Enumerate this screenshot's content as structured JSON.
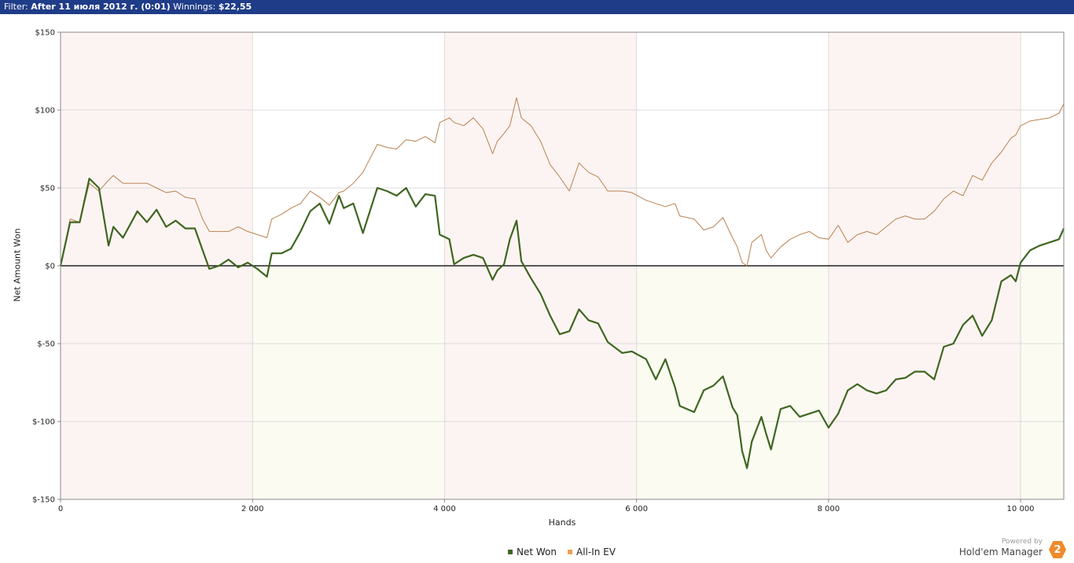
{
  "header": {
    "filter_key": "Filter:",
    "filter_value": "After 11 июля 2012 г. (0:01)",
    "winnings_key": "Winnings:",
    "winnings_value": "$22,55"
  },
  "brand": {
    "powered_by": "Powered by",
    "name": "Hold'em Manager",
    "badge": "2"
  },
  "colors": {
    "net_won": "#3f6621",
    "allin_ev": "#b8824f",
    "band_pink": "#fcf4f2",
    "band_cream": "#fbfbf2",
    "header_bg": "#1f3c88"
  },
  "chart_data": {
    "type": "line",
    "title": "",
    "xlabel": "Hands",
    "ylabel": "Net Amount Won",
    "xlim": [
      0,
      10450
    ],
    "ylim": [
      -150,
      150
    ],
    "x_ticks": [
      0,
      2000,
      4000,
      6000,
      8000,
      10000
    ],
    "x_tick_labels": [
      "0",
      "2 000",
      "4 000",
      "6 000",
      "8 000",
      "10 000"
    ],
    "y_ticks": [
      150,
      100,
      50,
      0,
      -50,
      -100,
      -150
    ],
    "y_tick_labels": [
      "$150",
      "$100",
      "$50",
      "$0",
      "$-50",
      "$-100",
      "$-150"
    ],
    "grid": true,
    "legend": "bottom-center",
    "series": [
      {
        "name": "Net Won",
        "color": "#3f6621",
        "points": [
          [
            0,
            0
          ],
          [
            100,
            28
          ],
          [
            200,
            28
          ],
          [
            300,
            56
          ],
          [
            400,
            50
          ],
          [
            500,
            13
          ],
          [
            550,
            25
          ],
          [
            650,
            18
          ],
          [
            800,
            35
          ],
          [
            900,
            28
          ],
          [
            1000,
            36
          ],
          [
            1100,
            25
          ],
          [
            1200,
            29
          ],
          [
            1300,
            24
          ],
          [
            1400,
            24
          ],
          [
            1480,
            10
          ],
          [
            1550,
            -2
          ],
          [
            1650,
            0
          ],
          [
            1750,
            4
          ],
          [
            1850,
            -1
          ],
          [
            1950,
            2
          ],
          [
            2050,
            -2
          ],
          [
            2150,
            -7
          ],
          [
            2200,
            8
          ],
          [
            2300,
            8
          ],
          [
            2400,
            11
          ],
          [
            2500,
            22
          ],
          [
            2600,
            35
          ],
          [
            2700,
            40
          ],
          [
            2800,
            27
          ],
          [
            2900,
            45
          ],
          [
            2950,
            37
          ],
          [
            3050,
            40
          ],
          [
            3150,
            21
          ],
          [
            3300,
            50
          ],
          [
            3400,
            48
          ],
          [
            3500,
            45
          ],
          [
            3600,
            50
          ],
          [
            3700,
            38
          ],
          [
            3800,
            46
          ],
          [
            3900,
            45
          ],
          [
            3950,
            20
          ],
          [
            4050,
            17
          ],
          [
            4100,
            1
          ],
          [
            4200,
            5
          ],
          [
            4300,
            7
          ],
          [
            4400,
            5
          ],
          [
            4500,
            -9
          ],
          [
            4550,
            -3
          ],
          [
            4620,
            1
          ],
          [
            4680,
            17
          ],
          [
            4750,
            29
          ],
          [
            4800,
            3
          ],
          [
            4900,
            -8
          ],
          [
            5000,
            -18
          ],
          [
            5100,
            -32
          ],
          [
            5200,
            -44
          ],
          [
            5300,
            -42
          ],
          [
            5400,
            -28
          ],
          [
            5500,
            -35
          ],
          [
            5600,
            -37
          ],
          [
            5700,
            -49
          ],
          [
            5850,
            -56
          ],
          [
            5950,
            -55
          ],
          [
            6100,
            -60
          ],
          [
            6200,
            -73
          ],
          [
            6300,
            -60
          ],
          [
            6400,
            -78
          ],
          [
            6450,
            -90
          ],
          [
            6600,
            -94
          ],
          [
            6700,
            -80
          ],
          [
            6800,
            -77
          ],
          [
            6900,
            -71
          ],
          [
            7000,
            -91
          ],
          [
            7050,
            -96
          ],
          [
            7100,
            -119
          ],
          [
            7150,
            -130
          ],
          [
            7200,
            -113
          ],
          [
            7300,
            -97
          ],
          [
            7350,
            -108
          ],
          [
            7400,
            -118
          ],
          [
            7500,
            -92
          ],
          [
            7600,
            -90
          ],
          [
            7700,
            -97
          ],
          [
            7800,
            -95
          ],
          [
            7900,
            -93
          ],
          [
            8000,
            -104
          ],
          [
            8100,
            -95
          ],
          [
            8200,
            -80
          ],
          [
            8300,
            -76
          ],
          [
            8400,
            -80
          ],
          [
            8500,
            -82
          ],
          [
            8600,
            -80
          ],
          [
            8700,
            -73
          ],
          [
            8800,
            -72
          ],
          [
            8900,
            -68
          ],
          [
            9000,
            -68
          ],
          [
            9100,
            -73
          ],
          [
            9200,
            -52
          ],
          [
            9300,
            -50
          ],
          [
            9400,
            -38
          ],
          [
            9500,
            -32
          ],
          [
            9600,
            -45
          ],
          [
            9700,
            -35
          ],
          [
            9800,
            -10
          ],
          [
            9900,
            -6
          ],
          [
            9950,
            -10
          ],
          [
            10000,
            2
          ],
          [
            10100,
            10
          ],
          [
            10200,
            13
          ],
          [
            10300,
            15
          ],
          [
            10400,
            17
          ],
          [
            10450,
            24
          ]
        ]
      },
      {
        "name": "All-In EV",
        "color": "#b8824f",
        "points": [
          [
            0,
            0
          ],
          [
            100,
            30
          ],
          [
            200,
            28
          ],
          [
            300,
            53
          ],
          [
            400,
            48
          ],
          [
            500,
            55
          ],
          [
            550,
            58
          ],
          [
            650,
            53
          ],
          [
            800,
            53
          ],
          [
            900,
            53
          ],
          [
            1000,
            50
          ],
          [
            1100,
            47
          ],
          [
            1200,
            48
          ],
          [
            1300,
            44
          ],
          [
            1400,
            43
          ],
          [
            1480,
            30
          ],
          [
            1550,
            22
          ],
          [
            1650,
            22
          ],
          [
            1750,
            22
          ],
          [
            1850,
            25
          ],
          [
            1950,
            22
          ],
          [
            2050,
            20
          ],
          [
            2150,
            18
          ],
          [
            2200,
            30
          ],
          [
            2300,
            33
          ],
          [
            2400,
            37
          ],
          [
            2500,
            40
          ],
          [
            2600,
            48
          ],
          [
            2700,
            44
          ],
          [
            2800,
            39
          ],
          [
            2900,
            47
          ],
          [
            2950,
            48
          ],
          [
            3050,
            53
          ],
          [
            3150,
            60
          ],
          [
            3300,
            78
          ],
          [
            3400,
            76
          ],
          [
            3500,
            75
          ],
          [
            3600,
            81
          ],
          [
            3700,
            80
          ],
          [
            3800,
            83
          ],
          [
            3900,
            79
          ],
          [
            3950,
            92
          ],
          [
            4050,
            95
          ],
          [
            4100,
            92
          ],
          [
            4200,
            90
          ],
          [
            4300,
            95
          ],
          [
            4400,
            88
          ],
          [
            4500,
            72
          ],
          [
            4550,
            80
          ],
          [
            4620,
            85
          ],
          [
            4680,
            90
          ],
          [
            4750,
            108
          ],
          [
            4800,
            95
          ],
          [
            4900,
            90
          ],
          [
            5000,
            80
          ],
          [
            5100,
            65
          ],
          [
            5200,
            57
          ],
          [
            5300,
            48
          ],
          [
            5400,
            66
          ],
          [
            5500,
            60
          ],
          [
            5600,
            57
          ],
          [
            5700,
            48
          ],
          [
            5850,
            48
          ],
          [
            5950,
            47
          ],
          [
            6100,
            42
          ],
          [
            6200,
            40
          ],
          [
            6300,
            38
          ],
          [
            6400,
            40
          ],
          [
            6450,
            32
          ],
          [
            6600,
            30
          ],
          [
            6700,
            23
          ],
          [
            6800,
            25
          ],
          [
            6900,
            31
          ],
          [
            7000,
            18
          ],
          [
            7050,
            12
          ],
          [
            7100,
            2
          ],
          [
            7150,
            0
          ],
          [
            7200,
            15
          ],
          [
            7300,
            20
          ],
          [
            7350,
            10
          ],
          [
            7400,
            5
          ],
          [
            7500,
            12
          ],
          [
            7600,
            17
          ],
          [
            7700,
            20
          ],
          [
            7800,
            22
          ],
          [
            7900,
            18
          ],
          [
            8000,
            17
          ],
          [
            8100,
            26
          ],
          [
            8200,
            15
          ],
          [
            8300,
            20
          ],
          [
            8400,
            22
          ],
          [
            8500,
            20
          ],
          [
            8600,
            25
          ],
          [
            8700,
            30
          ],
          [
            8800,
            32
          ],
          [
            8900,
            30
          ],
          [
            9000,
            30
          ],
          [
            9100,
            35
          ],
          [
            9200,
            43
          ],
          [
            9300,
            48
          ],
          [
            9400,
            45
          ],
          [
            9500,
            58
          ],
          [
            9600,
            55
          ],
          [
            9700,
            66
          ],
          [
            9800,
            73
          ],
          [
            9900,
            82
          ],
          [
            9950,
            84
          ],
          [
            10000,
            90
          ],
          [
            10100,
            93
          ],
          [
            10200,
            94
          ],
          [
            10300,
            95
          ],
          [
            10400,
            98
          ],
          [
            10450,
            104
          ]
        ]
      }
    ]
  }
}
